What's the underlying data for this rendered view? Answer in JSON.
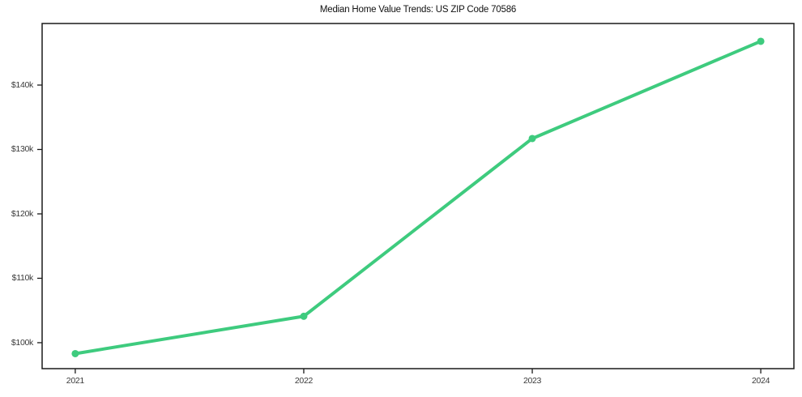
{
  "chart_data": {
    "type": "line",
    "title": "Median Home Value Trends: US ZIP Code 70586",
    "x": [
      2021,
      2022,
      2023,
      2024
    ],
    "series": [
      {
        "name": "Median home value",
        "values": [
          98300,
          104100,
          131700,
          146800
        ],
        "color": "#3ecb7e",
        "line_width": 4,
        "marker": "circle",
        "marker_radius": 4.5
      }
    ],
    "xlabel": "",
    "ylabel": "",
    "xlim": [
      2020.855,
      2024.145
    ],
    "ylim": [
      95970,
      149560
    ],
    "xticks": {
      "values": [
        2021,
        2022,
        2023,
        2024
      ],
      "labels": [
        "2021",
        "2022",
        "2023",
        "2024"
      ]
    },
    "yticks": {
      "values": [
        100000,
        110000,
        120000,
        130000,
        140000
      ],
      "labels": [
        "$100k",
        "$110k",
        "$120k",
        "$130k",
        "$140k"
      ]
    },
    "grid": false,
    "legend": false,
    "background": "#ffffff",
    "axis_color": "#1a1a1a",
    "tick_label_color": "#3a3a3a"
  }
}
